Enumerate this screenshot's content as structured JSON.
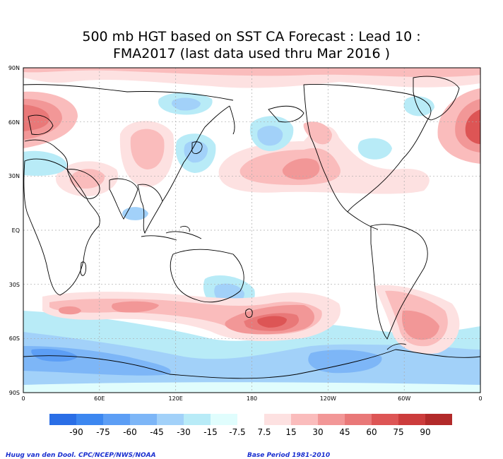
{
  "title_line1": "500 mb HGT based on SST CA Forecast : Lead 10 :",
  "title_line2": "FMA2017 (last data used thru Mar 2016 )",
  "lat_labels": [
    "90N",
    "60N",
    "30N",
    "EQ",
    "30S",
    "60S",
    "90S"
  ],
  "lon_labels": [
    "0",
    "60E",
    "120E",
    "180",
    "120W",
    "60W",
    "0"
  ],
  "colorbar": {
    "labels": [
      "-90",
      "-75",
      "-60",
      "-45",
      "-30",
      "-15",
      "-7.5",
      "7.5",
      "15",
      "30",
      "45",
      "60",
      "75",
      "90"
    ],
    "colors": [
      "#2a6ee6",
      "#3c87f0",
      "#5c9ef5",
      "#7db6f7",
      "#a2d1f9",
      "#b8ebf7",
      "#e0fdfd",
      "#ffffff",
      "#fde1e1",
      "#fabcbc",
      "#f29797",
      "#e97878",
      "#dd5555",
      "#cc3c3c",
      "#b22a2a"
    ]
  },
  "credits": {
    "left": "Huug van den Dool. CPC/NCEP/NWS/NOAA",
    "right": "Base Period 1981-2010"
  }
}
